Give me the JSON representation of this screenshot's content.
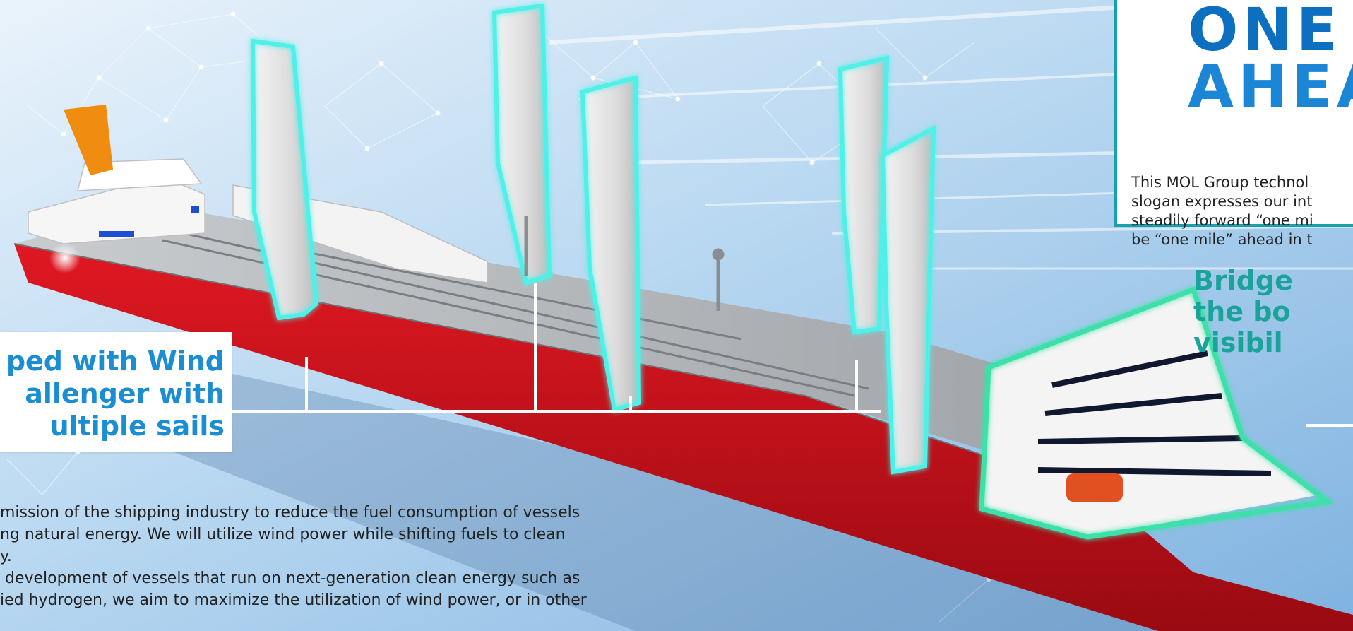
{
  "colors": {
    "sky_light": "#dbeaf7",
    "sky_mid": "#9ec8ea",
    "hull_red": "#c8101c",
    "deck_gray": "#a9adb1",
    "sail_glow": "#4ff0e8",
    "bridge_glow": "#3ee0a8",
    "callout_blue": "#1b8ed3",
    "callout_teal": "#1aa39a",
    "slogan_border": "#1aa0a8",
    "logo_blue": "#0d6fbf",
    "funnel_orange": "#f08c10"
  },
  "callout_left": {
    "lines": [
      "ped with Wind",
      "allenger with",
      "ultiple sails"
    ]
  },
  "slogan": {
    "logo_lines": [
      "ONE",
      "AHEA"
    ],
    "description_lines": [
      "This MOL Group technol",
      "slogan expresses our int",
      "steadily forward “one mi",
      "be “one mile” ahead in t"
    ]
  },
  "callout_right": {
    "lines": [
      "Bridge",
      "the bo",
      "visibil"
    ]
  },
  "body": {
    "lines": [
      "mission of the shipping industry to reduce the fuel consumption of vessels",
      "ng natural energy. We will utilize wind power while shifting fuels to clean",
      "y.",
      " development of vessels that run on next-generation clean energy such as",
      "ied hydrogen, we aim to maximize the utilization of wind power, or in other"
    ]
  },
  "icons": {
    "logo_mark": "one-mile-logo-mark",
    "network": "network-constellation-graphic"
  }
}
